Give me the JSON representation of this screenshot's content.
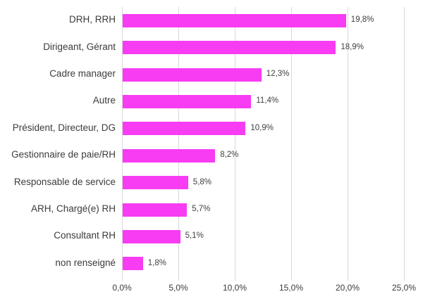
{
  "chart_data": {
    "type": "bar",
    "orientation": "horizontal",
    "title": "",
    "xlabel": "",
    "ylabel": "",
    "categories": [
      "DRH, RRH",
      "Dirigeant, Gérant",
      "Cadre manager",
      "Autre",
      "Président, Directeur, DG",
      "Gestionnaire de paie/RH",
      "Responsable de service",
      "ARH, Chargé(e) RH",
      "Consultant RH",
      "non renseigné"
    ],
    "values": [
      19.8,
      18.9,
      12.3,
      11.4,
      10.9,
      8.2,
      5.8,
      5.7,
      5.1,
      1.8
    ],
    "value_labels": [
      "19,8%",
      "18,9%",
      "12,3%",
      "11,4%",
      "10,9%",
      "8,2%",
      "5,8%",
      "5,7%",
      "5,1%",
      "1,8%"
    ],
    "xlim": [
      0,
      25
    ],
    "x_ticks": [
      0,
      5,
      10,
      15,
      20,
      25
    ],
    "x_tick_labels": [
      "0,0%",
      "5,0%",
      "10,0%",
      "15,0%",
      "20,0%",
      "25,0%"
    ],
    "grid": true,
    "legend": false,
    "colors": {
      "bar": "#f83cf3",
      "gridline": "#d9d9d9",
      "axis": "#d9d9d9",
      "text": "#3b3b3b"
    }
  }
}
